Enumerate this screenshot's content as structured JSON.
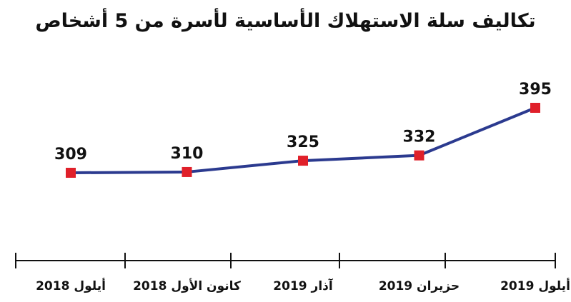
{
  "chart_data": {
    "type": "line",
    "title": "تكاليف سلة الاستهلاك الأساسية لأسرة من 5 أشخاص",
    "categories": [
      "أيلول 2018",
      "كانون الأول 2018",
      "آذار 2019",
      "حزيران 2019",
      "أيلول 2019"
    ],
    "series": [
      {
        "values": [
          309,
          310,
          325,
          332,
          395
        ]
      }
    ],
    "xlabel": "",
    "ylabel": "",
    "grid": false,
    "line_color": "#2b3a8f",
    "marker_color": "#e0202a",
    "axis_color": "#111111"
  }
}
